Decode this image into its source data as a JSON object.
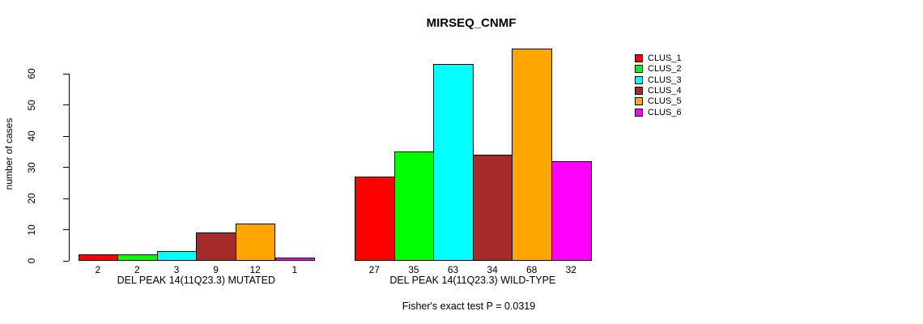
{
  "chart_data": {
    "type": "bar",
    "title": "MIRSEQ_CNMF",
    "ylabel": "number of cases",
    "ylim": [
      0,
      68
    ],
    "yticks": [
      0,
      10,
      20,
      30,
      40,
      50,
      60
    ],
    "grid": false,
    "legend_position": "right",
    "series": [
      {
        "name": "CLUS_1",
        "color": "#FF0000"
      },
      {
        "name": "CLUS_2",
        "color": "#00FF00"
      },
      {
        "name": "CLUS_3",
        "color": "#00FFFF"
      },
      {
        "name": "CLUS_4",
        "color": "#A52A2A"
      },
      {
        "name": "CLUS_5",
        "color": "#FFA500"
      },
      {
        "name": "CLUS_6",
        "color": "#FF00FF"
      }
    ],
    "groups": [
      {
        "label": "DEL PEAK 14(11Q23.3) MUTATED",
        "values": [
          2,
          2,
          3,
          9,
          12,
          1
        ]
      },
      {
        "label": "DEL PEAK 14(11Q23.3) WILD-TYPE",
        "values": [
          27,
          35,
          63,
          34,
          68,
          32
        ]
      }
    ],
    "footnote": "Fisher's exact test P = 0.0319"
  }
}
